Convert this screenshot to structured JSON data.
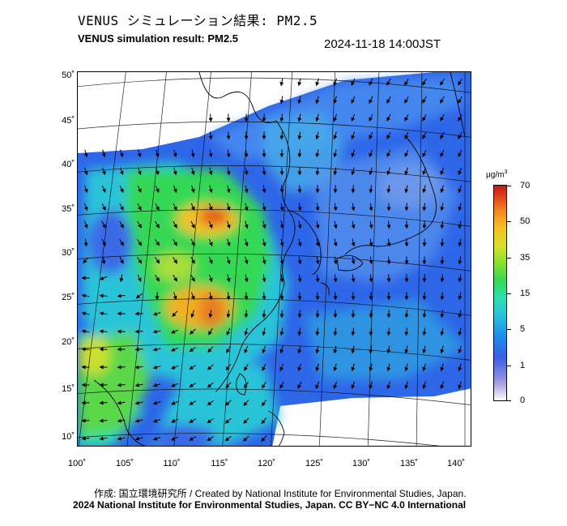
{
  "header": {
    "title_jp": "VENUS シミュレーション結果: PM2.5",
    "title_en": "VENUS simulation result: PM2.5",
    "timestamp": "2024-11-18 14:00JST"
  },
  "map": {
    "lat_labels": [
      "50˚",
      "45˚",
      "40˚",
      "35˚",
      "30˚",
      "25˚",
      "20˚",
      "15˚",
      "10˚"
    ],
    "lon_labels": [
      "100˚",
      "105˚",
      "110˚",
      "115˚",
      "120˚",
      "125˚",
      "130˚",
      "135˚",
      "140˚"
    ],
    "lon_range": [
      100,
      141
    ],
    "lat_range": [
      9,
      51
    ],
    "ocean_color": "#2e66e8",
    "high_concentration_color": "#e04a1c"
  },
  "colorbar": {
    "unit_main": "μg/m",
    "unit_sup": "3",
    "ticks": [
      "70",
      "50",
      "35",
      "15",
      "5",
      "1",
      "0"
    ]
  },
  "footer": {
    "credit_jp": "作成: 国立環境研究所 / Created by National Institute for Environmental Studies, Japan.",
    "credit_en": "2024 National Institute for Environmental Studies, Japan. CC BY−NC 4.0 International"
  }
}
